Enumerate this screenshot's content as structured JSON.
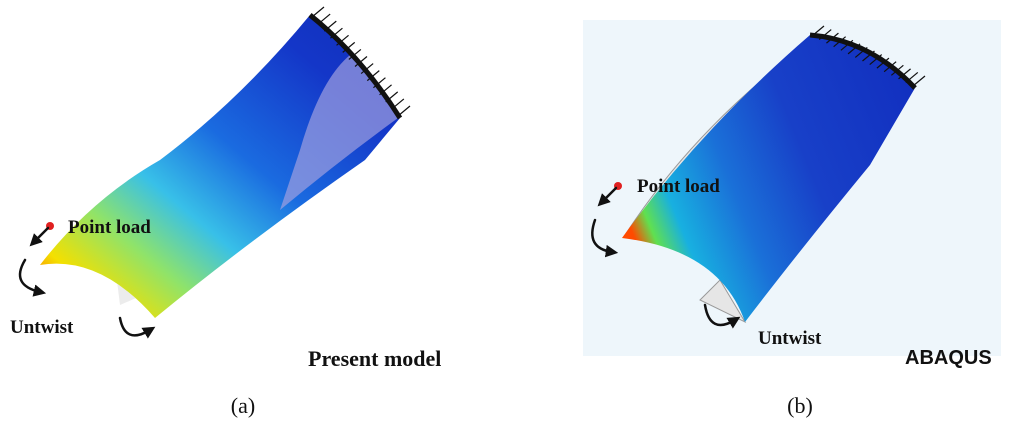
{
  "panels": [
    {
      "labels": [
        "Point load",
        "Untwist"
      ],
      "model": "Present model",
      "caption": "(a)"
    },
    {
      "labels": [
        "Point load",
        "Untwist"
      ],
      "model": "ABAQUS",
      "caption": "(b)"
    }
  ]
}
